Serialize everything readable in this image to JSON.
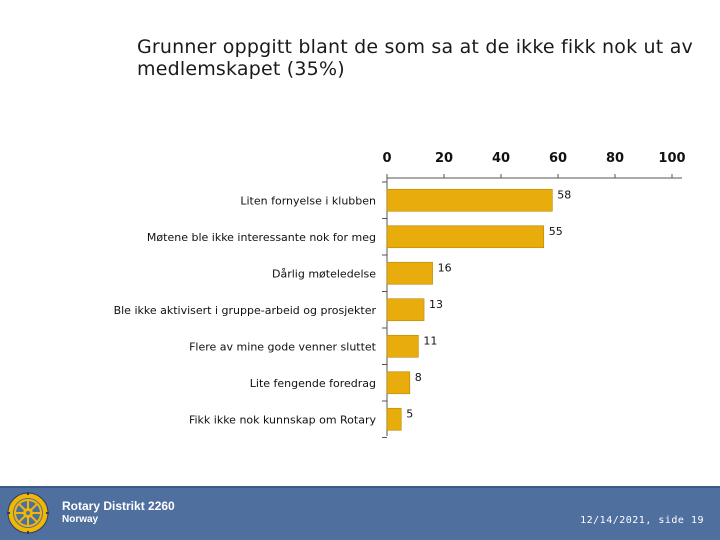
{
  "slide": {
    "title": "Grunner oppgitt blant de som sa at de ikke fikk nok ut av medlemskapet (35%)"
  },
  "chart_data": {
    "type": "bar",
    "orientation": "horizontal",
    "title": "Grunner oppgitt blant de som sa at de ikke fikk nok ut av medlemskapet (35%)",
    "categories": [
      "Liten fornyelse i klubben",
      "Møtene ble ikke interessante nok for meg",
      "Dårlig møteledelse",
      "Ble ikke aktivisert i gruppe-arbeid og prosjekter",
      "Flere av mine gode venner sluttet",
      "Lite fengende foredrag",
      "Fikk ikke nok kunnskap om Rotary"
    ],
    "values": [
      58,
      55,
      16,
      13,
      11,
      8,
      5
    ],
    "xlim": [
      0,
      100
    ],
    "xticks": [
      0,
      20,
      40,
      60,
      80,
      100
    ],
    "xaxis_position": "top",
    "bar_color": "#e8ad0c",
    "xlabel": "",
    "ylabel": ""
  },
  "footer": {
    "org_name": "Rotary Distrikt 2260",
    "country": "Norway",
    "slide_info": "12/14/2021, side 19",
    "background_color": "#4f6f9e",
    "logo_icon": "rotary-wheel-icon"
  }
}
